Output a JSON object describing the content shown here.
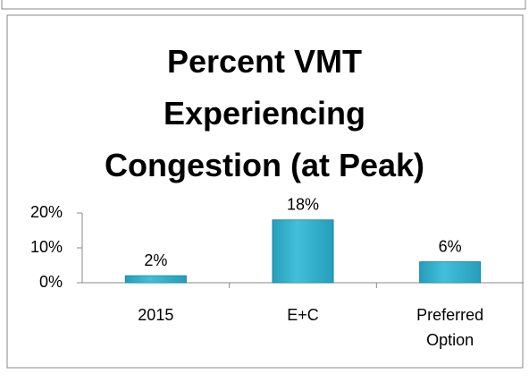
{
  "chart_data": {
    "type": "bar",
    "title": "Percent VMT Experiencing Congestion (at Peak)",
    "categories": [
      "2015",
      "E+C",
      "Preferred Option"
    ],
    "values": [
      2,
      18,
      6
    ],
    "value_labels": [
      "2%",
      "18%",
      "6%"
    ],
    "color": "#2fb4d1",
    "ylim": [
      0,
      20
    ],
    "yticks": [
      {
        "value": 0,
        "label": "0%"
      },
      {
        "value": 10,
        "label": "10%"
      },
      {
        "value": 20,
        "label": "20%"
      }
    ],
    "grid": false
  }
}
